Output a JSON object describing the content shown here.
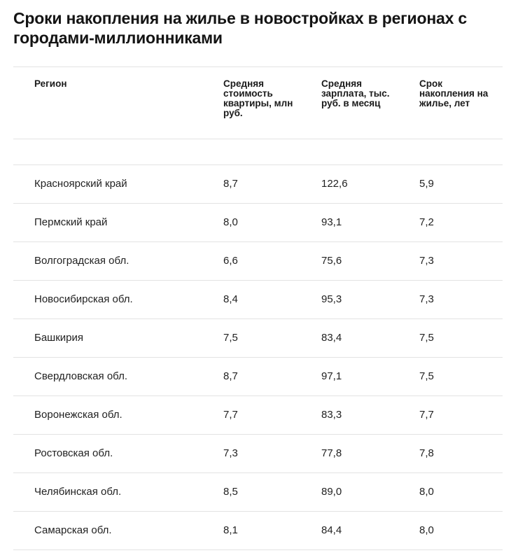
{
  "title": "Сроки накопления на жилье в новостройках в регионах с городами-миллионниками",
  "table": {
    "headers": [
      "Регион",
      "Средняя стоимость квартиры, млн руб.",
      "Средняя зарплата, тыс. руб. в месяц",
      "Срок накопления на жилье, лет"
    ],
    "rows": [
      [
        "Красноярский край",
        "8,7",
        "122,6",
        "5,9"
      ],
      [
        "Пермский край",
        "8,0",
        "93,1",
        "7,2"
      ],
      [
        "Волгоградская обл.",
        "6,6",
        "75,6",
        "7,3"
      ],
      [
        "Новосибирская обл.",
        "8,4",
        "95,3",
        "7,3"
      ],
      [
        "Башкирия",
        "7,5",
        "83,4",
        "7,5"
      ],
      [
        "Свердловская обл.",
        "8,7",
        "97,1",
        "7,5"
      ],
      [
        "Воронежская обл.",
        "7,7",
        "83,3",
        "7,7"
      ],
      [
        "Ростовская обл.",
        "7,3",
        "77,8",
        "7,8"
      ],
      [
        "Челябинская обл.",
        "8,5",
        "89,0",
        "8,0"
      ],
      [
        "Самарская обл.",
        "8,1",
        "84,4",
        "8,0"
      ]
    ]
  }
}
